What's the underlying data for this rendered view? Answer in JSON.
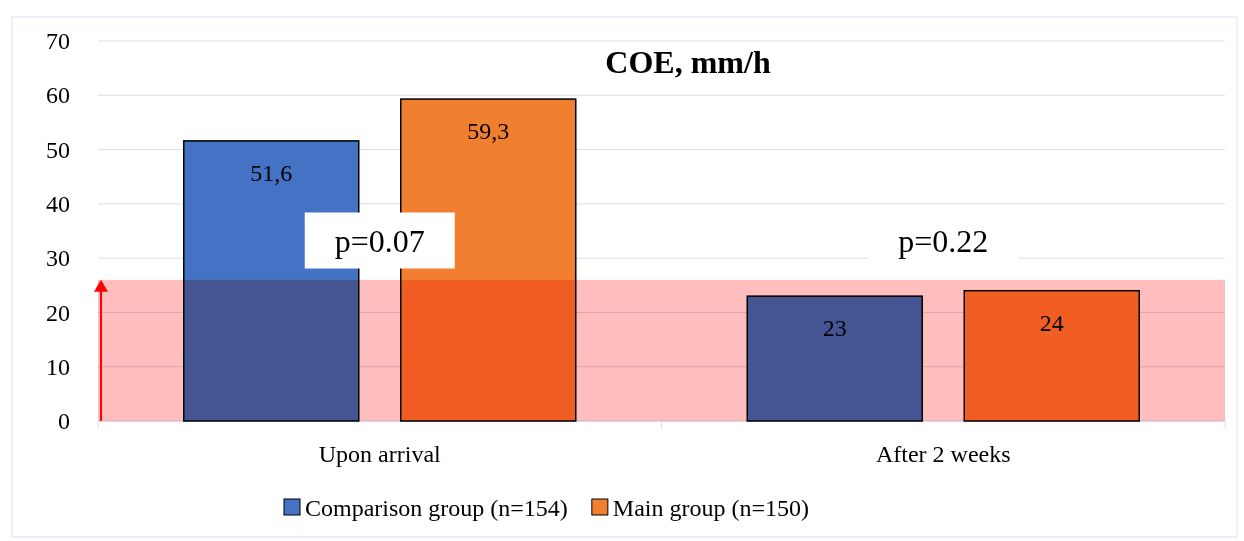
{
  "chart_data": {
    "type": "bar",
    "title": "COE, mm/h",
    "categories": [
      "Upon arrival",
      "After 2 weeks"
    ],
    "series": [
      {
        "name": "Comparison group (n=154)",
        "color": "#4472c4",
        "values": [
          51.6,
          23
        ],
        "value_labels": [
          "51,6",
          "23"
        ]
      },
      {
        "name": "Main group (n=150)",
        "color": "#f07f30",
        "values": [
          59.3,
          24
        ],
        "value_labels": [
          "59,3",
          "24"
        ]
      }
    ],
    "ylim": [
      0,
      70
    ],
    "yticks": [
      0,
      10,
      20,
      30,
      40,
      50,
      60,
      70
    ],
    "grid": "y",
    "legend": "bottom",
    "bands": [
      {
        "axis": "y",
        "from": 0,
        "to": 26,
        "color": "#ffbdbd"
      }
    ],
    "annotations": [
      "p=0.07",
      "p=0.22"
    ]
  }
}
